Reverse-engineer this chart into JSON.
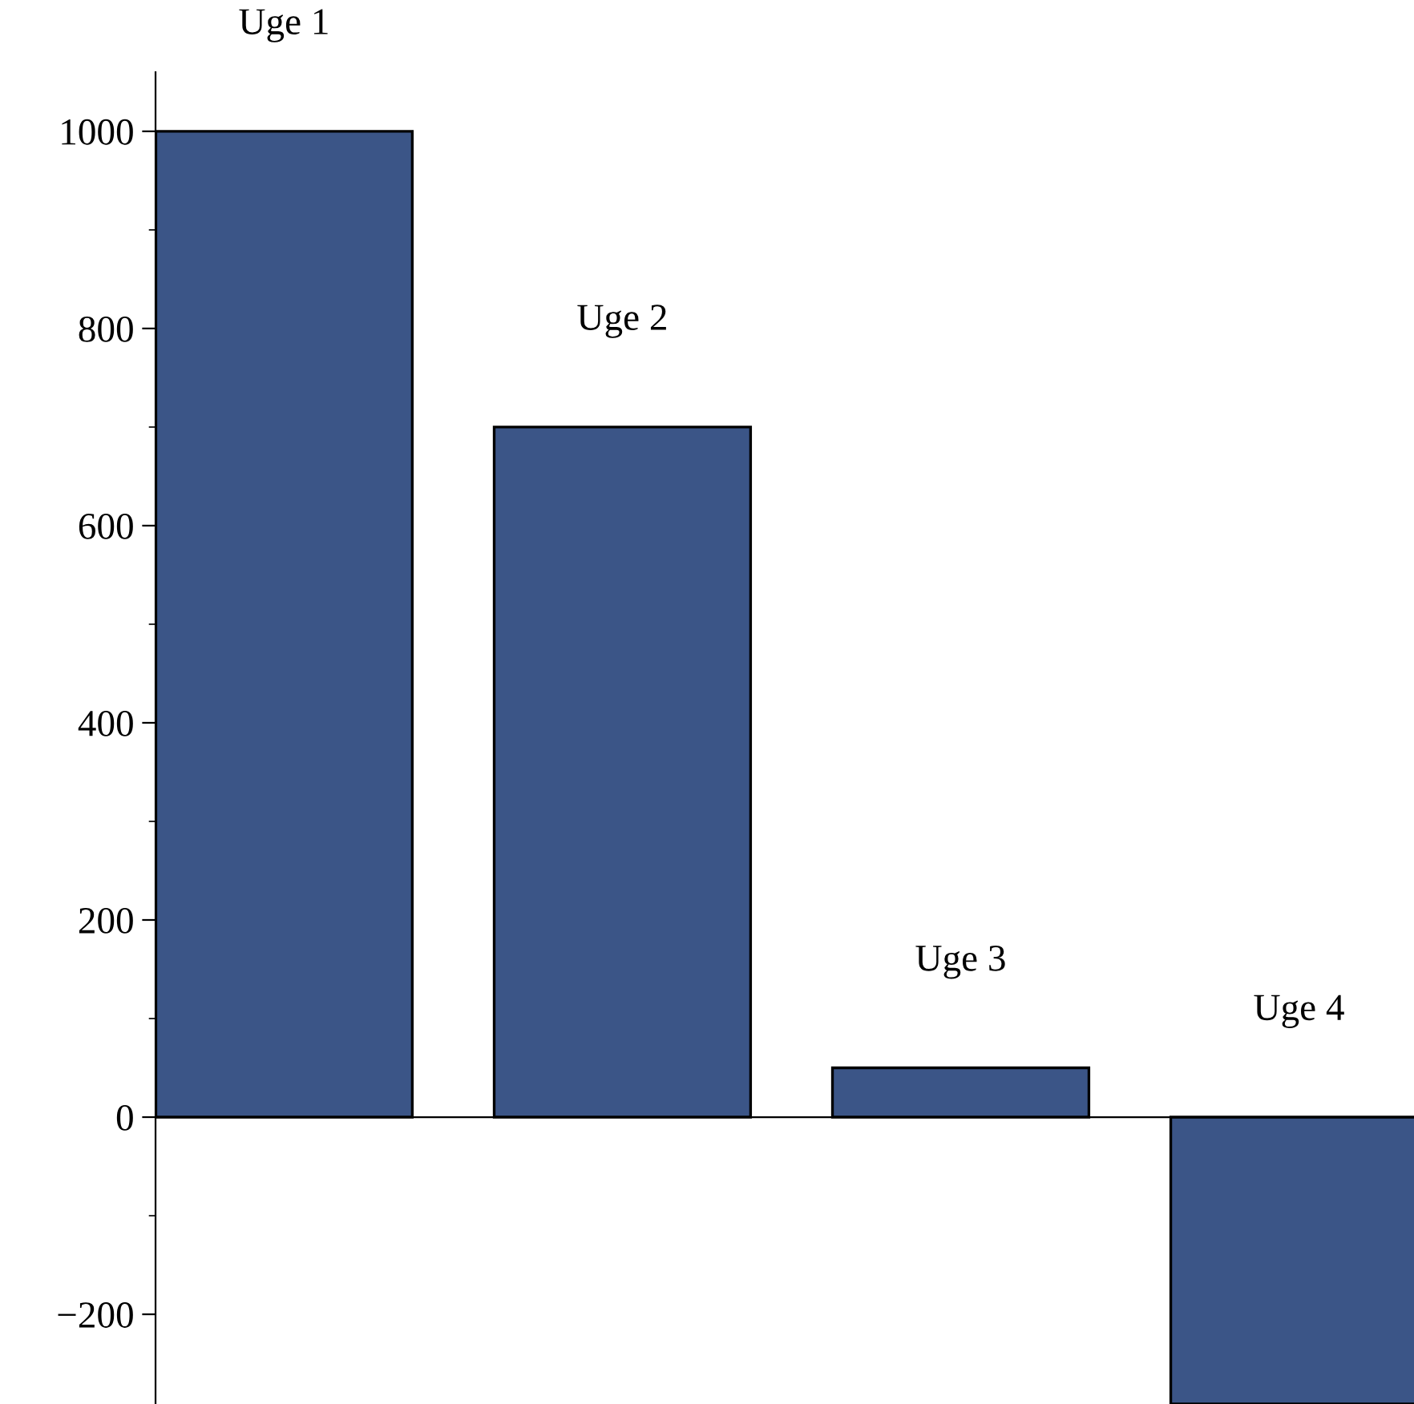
{
  "chart_data": {
    "type": "bar",
    "categories": [
      "Uge 1",
      "Uge 2",
      "Uge 3",
      "Uge 4"
    ],
    "values": [
      1000,
      700,
      50,
      -291
    ],
    "color": "#3b5587",
    "ylim": [
      -291,
      1060
    ],
    "yticks": [
      {
        "value": -200,
        "label": "−200"
      },
      0,
      200,
      400,
      600,
      800,
      1000
    ]
  }
}
